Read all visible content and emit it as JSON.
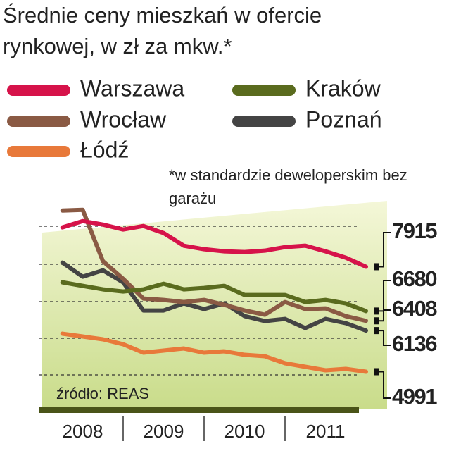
{
  "chart_data": {
    "type": "line",
    "title": "Średnie ceny mieszkań w ofercie rynkowej, w zł za mkw.*",
    "note": "*w standardzie deweloperskim bez garażu",
    "source": "źródło: REAS",
    "x": [
      2008.25,
      2008.5,
      2008.75,
      2009.0,
      2009.25,
      2009.5,
      2009.75,
      2010.0,
      2010.25,
      2010.5,
      2010.75,
      2011.0,
      2011.25,
      2011.5,
      2011.75,
      2012.0
    ],
    "xlim": [
      2008,
      2012
    ],
    "xticks": [
      {
        "value": 2008.5,
        "label": "2008"
      },
      {
        "value": 2009.5,
        "label": "2009"
      },
      {
        "value": 2010.5,
        "label": "2010"
      },
      {
        "value": 2011.5,
        "label": "2011"
      }
    ],
    "ylim": [
      4000,
      9650
    ],
    "series": [
      {
        "name": "Warszawa",
        "color": "#d6134a",
        "values": [
          9009,
          9185,
          9087,
          8950,
          9048,
          8852,
          8499,
          8401,
          8343,
          8323,
          8362,
          8460,
          8499,
          8343,
          8166,
          7915
        ]
      },
      {
        "name": "Kraków",
        "color": "#5a6b1e",
        "values": [
          7480,
          7382,
          7284,
          7225,
          7284,
          7441,
          7284,
          7323,
          7382,
          7127,
          7127,
          7127,
          6931,
          6990,
          6892,
          6680
        ]
      },
      {
        "name": "Wrocław",
        "color": "#8a5a44",
        "values": [
          9479,
          9499,
          8068,
          7578,
          7029,
          6990,
          6931,
          6990,
          6853,
          6696,
          6579,
          6931,
          6735,
          6755,
          6539,
          6408
        ]
      },
      {
        "name": "Poznań",
        "color": "#444444",
        "values": [
          8029,
          7637,
          7813,
          7480,
          6696,
          6696,
          6892,
          6735,
          6892,
          6539,
          6402,
          6461,
          6206,
          6461,
          6343,
          6136
        ]
      },
      {
        "name": "Łódź",
        "color": "#e8793a",
        "values": [
          6049,
          5971,
          5893,
          5755,
          5520,
          5579,
          5638,
          5520,
          5559,
          5461,
          5422,
          5226,
          5128,
          5030,
          5069,
          4991
        ]
      }
    ]
  }
}
